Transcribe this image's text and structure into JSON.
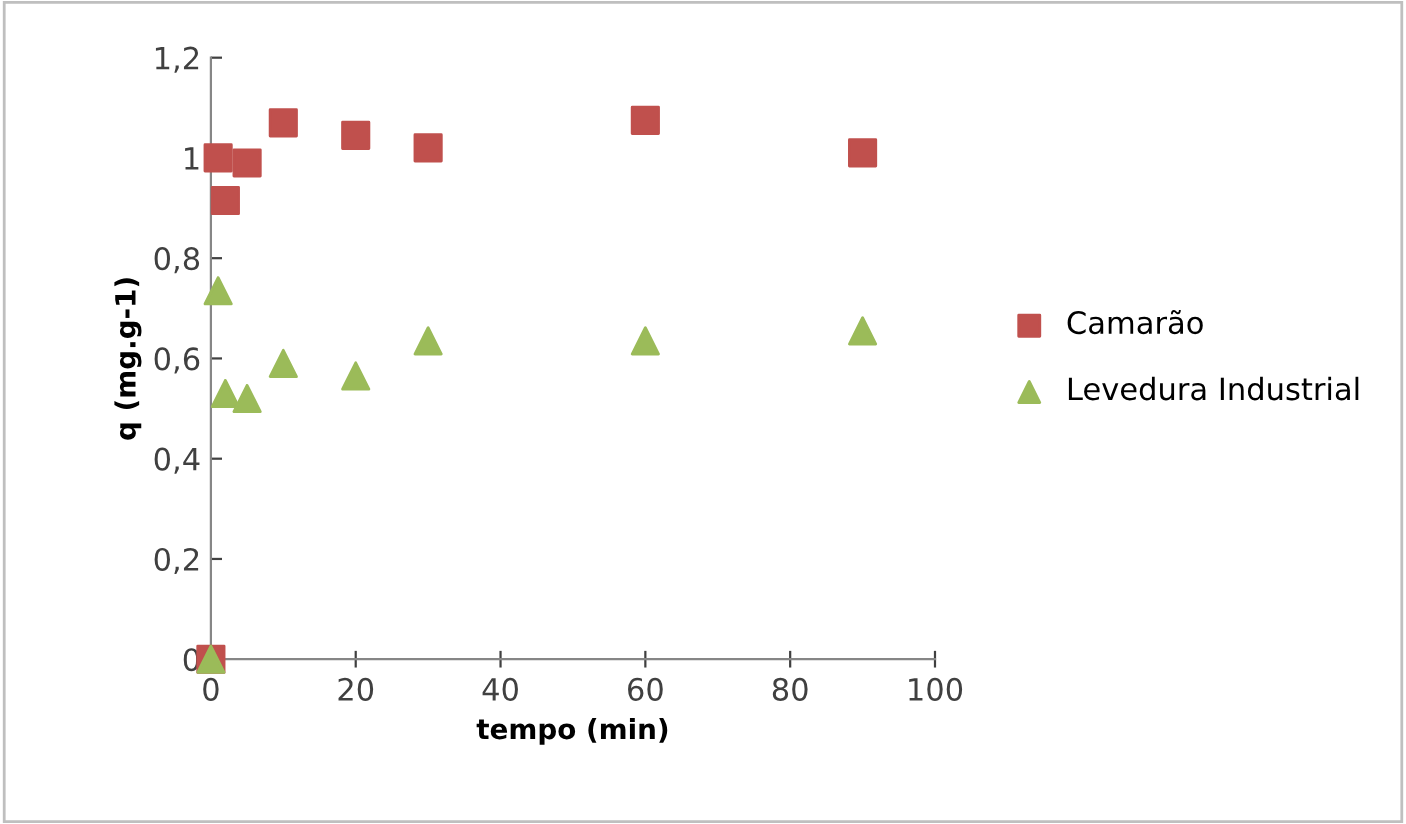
{
  "chart_data": {
    "type": "scatter",
    "xlabel": "tempo (min)",
    "ylabel": "q (mg.g-1)",
    "series": [
      {
        "name": "Camarão",
        "color": "#c0504d",
        "marker": "square",
        "x": [
          0,
          1,
          2,
          5,
          10,
          20,
          30,
          60,
          90
        ],
        "values": [
          0,
          1.0,
          0.915,
          0.99,
          1.07,
          1.045,
          1.02,
          1.075,
          1.01
        ]
      },
      {
        "name": "Levedura Industrial",
        "color": "#9bbb59",
        "marker": "triangle",
        "x": [
          0,
          1,
          2,
          5,
          10,
          20,
          30,
          60,
          90
        ],
        "values": [
          0,
          0.735,
          0.53,
          0.52,
          0.59,
          0.565,
          0.635,
          0.635,
          0.655
        ]
      }
    ],
    "xlim": [
      0,
      100
    ],
    "xticks": [
      0,
      20,
      40,
      60,
      80,
      100
    ],
    "ylim": [
      0,
      1.2
    ],
    "yticks": [
      0,
      {
        "value": 0.2,
        "label": "0,2"
      },
      {
        "value": 0.4,
        "label": "0,4"
      },
      {
        "value": 0.6,
        "label": "0,6"
      },
      {
        "value": 0.8,
        "label": "0,8"
      },
      1,
      {
        "value": 1.2,
        "label": "1,2"
      }
    ],
    "grid": false,
    "legend": "right"
  }
}
